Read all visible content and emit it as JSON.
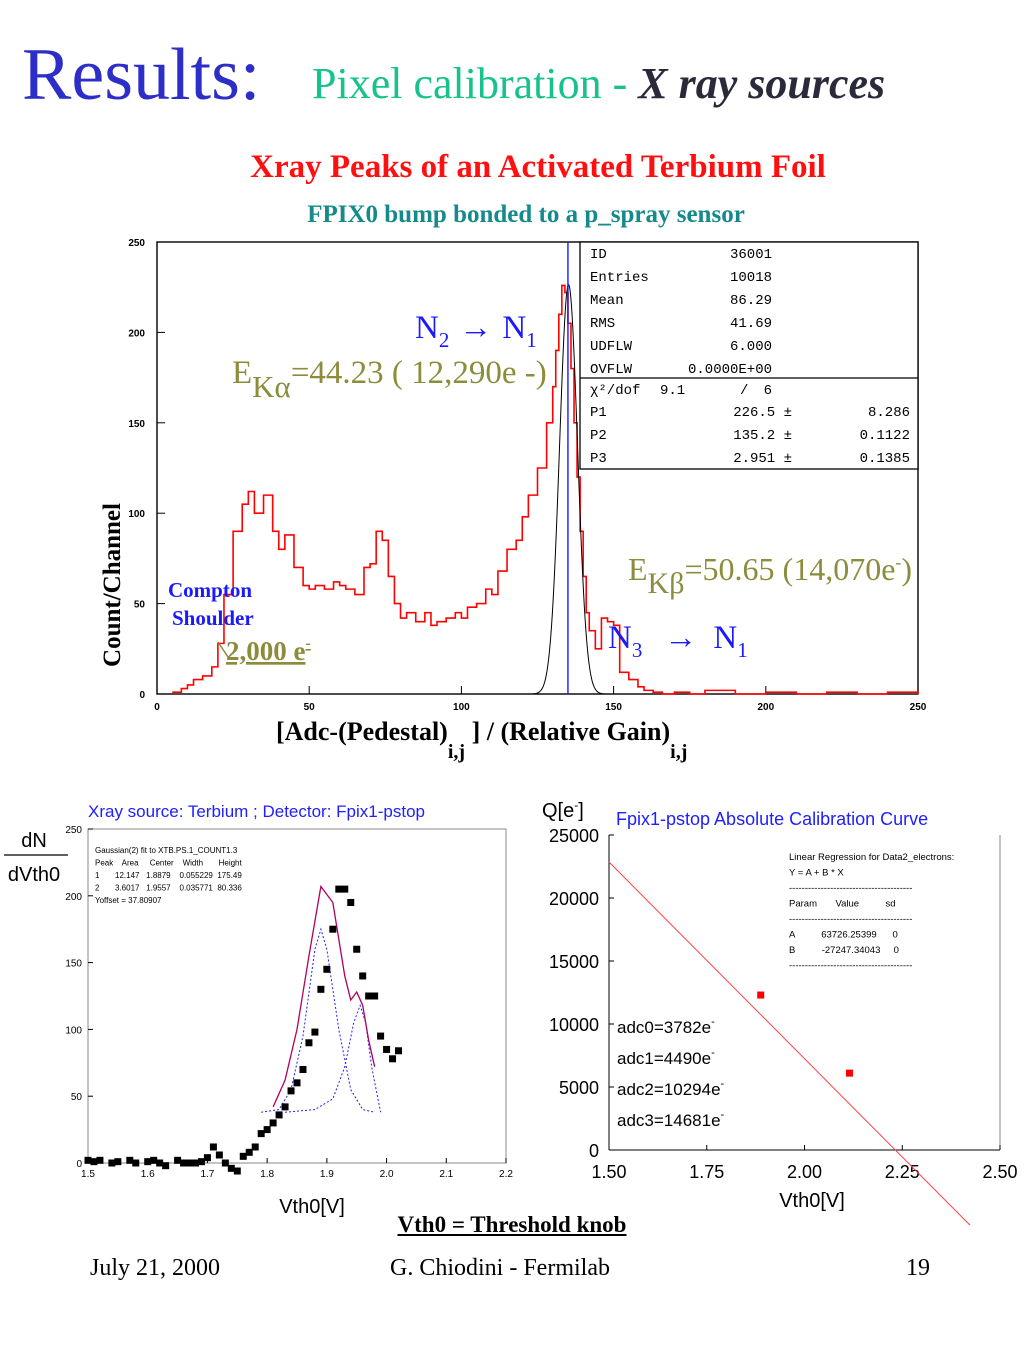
{
  "slide": {
    "title": "Results:",
    "subtitle_plain": "Pixel calibration - ",
    "subtitle_italic": "X ray sources",
    "caption": "Vth0 = Threshold knob",
    "footer": {
      "date": "July 21, 2000",
      "author": "G. Chiodini - Fermilab",
      "page": "19"
    },
    "colors": {
      "title": "#2d2dc8",
      "subtitle": "#18c28c",
      "histogram": "#ff0000",
      "olive": "#8c8c3c",
      "blue": "#1a1aff"
    }
  },
  "chart_data": [
    {
      "type": "line",
      "title": "Xray  Peaks  of an Activated Terbium Foil",
      "subtitle": "FPIX0 bump bonded to a p_spray sensor",
      "ylabel": "Count/Channel",
      "xlabel_parts": [
        "[Adc-(Pedestal)",
        "i,j",
        " ] / (Relative Gain)",
        "i,j"
      ],
      "xlim": [
        0,
        250
      ],
      "ylim": [
        0,
        250
      ],
      "xticks": [
        "0",
        "50",
        "100",
        "150",
        "200",
        "250"
      ],
      "yticks": [
        "0",
        "50",
        "100",
        "150",
        "200",
        "250"
      ],
      "vline_x": 135,
      "histogram": {
        "x": [
          5,
          8,
          10,
          12,
          15,
          18,
          20,
          22,
          25,
          28,
          30,
          32,
          35,
          38,
          40,
          42,
          45,
          48,
          50,
          52,
          55,
          58,
          60,
          62,
          65,
          68,
          70,
          72,
          74,
          76,
          78,
          80,
          82,
          85,
          88,
          90,
          92,
          95,
          98,
          100,
          102,
          105,
          108,
          110,
          112,
          115,
          118,
          120,
          122,
          125,
          128,
          130,
          131,
          132,
          133,
          134,
          135,
          136,
          137,
          138,
          139,
          140,
          141,
          142,
          144,
          146,
          148,
          150,
          152,
          155,
          158,
          160,
          163,
          166,
          170,
          175,
          180,
          190,
          200,
          210,
          220,
          230,
          240,
          250
        ],
        "y": [
          1,
          3,
          5,
          8,
          10,
          15,
          28,
          55,
          90,
          105,
          112,
          100,
          110,
          90,
          80,
          88,
          70,
          60,
          58,
          60,
          58,
          62,
          60,
          58,
          55,
          70,
          72,
          90,
          85,
          65,
          50,
          42,
          45,
          40,
          45,
          38,
          40,
          42,
          45,
          42,
          48,
          50,
          58,
          55,
          68,
          80,
          85,
          98,
          110,
          125,
          150,
          170,
          190,
          210,
          226,
          222,
          205,
          180,
          150,
          120,
          90,
          65,
          45,
          35,
          25,
          42,
          40,
          38,
          12,
          8,
          4,
          2,
          1,
          0,
          1,
          0,
          2,
          0,
          1,
          0,
          1,
          0,
          1,
          0
        ]
      },
      "annotations": {
        "n2": "N",
        "n2_sub": "2",
        "arrow1": "→",
        "n1": "N",
        "n1_sub": "1",
        "e_ka_pre": "E",
        "e_ka_sub": "Kα",
        "e_ka": "=44.23 ( 12,290e -)",
        "e_kb_pre": "E",
        "e_kb_sub": "Kβ",
        "e_kb": "=50.65 (14,070e",
        "e_kb_sup": "-",
        "e_kb_close": ")",
        "n3": "N",
        "n3_sub": "3",
        "arrow2": "→",
        "n1b": "N",
        "n1b_sub": "1",
        "compton1": "Compton",
        "compton2": "Shoulder",
        "e2000": "2,000 e",
        "e2000_sup": "-"
      },
      "stats": [
        [
          "ID",
          "36001"
        ],
        [
          "Entries",
          "10018"
        ],
        [
          "Mean",
          "86.29"
        ],
        [
          "RMS",
          "41.69"
        ],
        [
          "UDFLW",
          "6.000"
        ],
        [
          "OVFLW",
          "0.0000E+00"
        ]
      ],
      "fit_header": [
        "χ²/dof",
        "9.1",
        "/",
        "6"
      ],
      "fit_params": [
        [
          "P1",
          "226.5 ±",
          "8.286"
        ],
        [
          "P2",
          "135.2 ±",
          "0.1122"
        ],
        [
          "P3",
          "2.951 ±",
          "0.1385"
        ]
      ]
    },
    {
      "type": "scatter",
      "title": "Xray source: Terbium ; Detector: Fpix1-pstop",
      "ylabel_num": "dN",
      "ylabel_den": "dVth0",
      "xlabel": "Vth0[V]",
      "xlim": [
        1.5,
        2.2
      ],
      "ylim": [
        0,
        250
      ],
      "xticks": [
        "1.5",
        "1.6",
        "1.7",
        "1.8",
        "1.9",
        "2.0",
        "2.1",
        "2.2"
      ],
      "yticks": [
        "0",
        "50",
        "100",
        "150",
        "200",
        "250"
      ],
      "points": {
        "x": [
          1.5,
          1.51,
          1.52,
          1.54,
          1.55,
          1.57,
          1.58,
          1.6,
          1.61,
          1.62,
          1.63,
          1.65,
          1.66,
          1.67,
          1.68,
          1.69,
          1.7,
          1.71,
          1.72,
          1.73,
          1.74,
          1.75,
          1.76,
          1.77,
          1.78,
          1.79,
          1.8,
          1.81,
          1.82,
          1.83,
          1.84,
          1.85,
          1.86,
          1.87,
          1.88,
          1.89,
          1.9,
          1.91,
          1.92,
          1.93,
          1.94,
          1.95,
          1.96,
          1.97,
          1.98,
          1.99,
          2.0,
          2.01,
          2.02
        ],
        "y": [
          2,
          1,
          2,
          0,
          1,
          2,
          0,
          1,
          2,
          0,
          -2,
          2,
          0,
          0,
          0,
          1,
          4,
          12,
          6,
          0,
          -4,
          -6,
          5,
          8,
          12,
          22,
          25,
          30,
          36,
          42,
          54,
          60,
          70,
          90,
          98,
          130,
          145,
          175,
          205,
          205,
          195,
          160,
          140,
          125,
          125,
          95,
          85,
          78,
          84
        ]
      },
      "fit_curve": {
        "x": [
          1.81,
          1.83,
          1.85,
          1.87,
          1.89,
          1.91,
          1.93,
          1.94,
          1.95,
          1.96,
          1.97,
          1.98
        ],
        "y": [
          42,
          62,
          100,
          155,
          207,
          195,
          140,
          122,
          128,
          118,
          92,
          72
        ]
      },
      "gauss1": {
        "x": [
          1.79,
          1.82,
          1.84,
          1.86,
          1.88,
          1.89,
          1.9,
          1.92,
          1.94,
          1.96,
          1.98
        ],
        "y": [
          38,
          40,
          55,
          95,
          160,
          175,
          160,
          100,
          55,
          40,
          38
        ]
      },
      "gauss2": {
        "x": [
          1.83,
          1.88,
          1.91,
          1.93,
          1.945,
          1.9557,
          1.965,
          1.975,
          1.99
        ],
        "y": [
          38,
          40,
          48,
          72,
          105,
          118,
          105,
          72,
          38
        ]
      },
      "fit_box": [
        "Gaussian(2) fit to XTB.PS.1_COUNT1.3",
        "Peak    Area     Center    Width       Height",
        "1       12.147   1.8879    0.055229  175.49",
        "2       3.6017   1.9557    0.035771  80.336",
        "Yoffset = 37.80907"
      ]
    },
    {
      "type": "scatter",
      "title": "Fpix1-pstop Absolute Calibration Curve",
      "ylabel": "Q[e",
      "ylabel_sup": "-",
      "ylabel_close": "]",
      "xlabel": "Vth0[V]",
      "xlim": [
        1.5,
        2.5
      ],
      "ylim": [
        0,
        25000
      ],
      "xticks": [
        "1.50",
        "1.75",
        "2.00",
        "2.25",
        "2.50"
      ],
      "yticks": [
        "0",
        "5000",
        "10000",
        "15000",
        "20000",
        "25000"
      ],
      "points": {
        "x": [
          1.888,
          2.115
        ],
        "y": [
          12300,
          6100
        ]
      },
      "line": {
        "A": 63726.25399,
        "B": -27247.34043,
        "x_end": 2.5
      },
      "regression_box": [
        "Linear Regression for Data2_electrons:",
        "Y = A + B * X",
        "---------------------------------------",
        "Param       Value          sd",
        "---------------------------------------",
        "A          63726.25399      0",
        "B          -27247.34043     0",
        "---------------------------------------"
      ],
      "adc_labels": [
        [
          "adc0=3782e",
          "-"
        ],
        [
          "adc1=4490e",
          "-"
        ],
        [
          "adc2=10294e",
          "-"
        ],
        [
          "adc3=14681e",
          "-"
        ]
      ]
    }
  ]
}
